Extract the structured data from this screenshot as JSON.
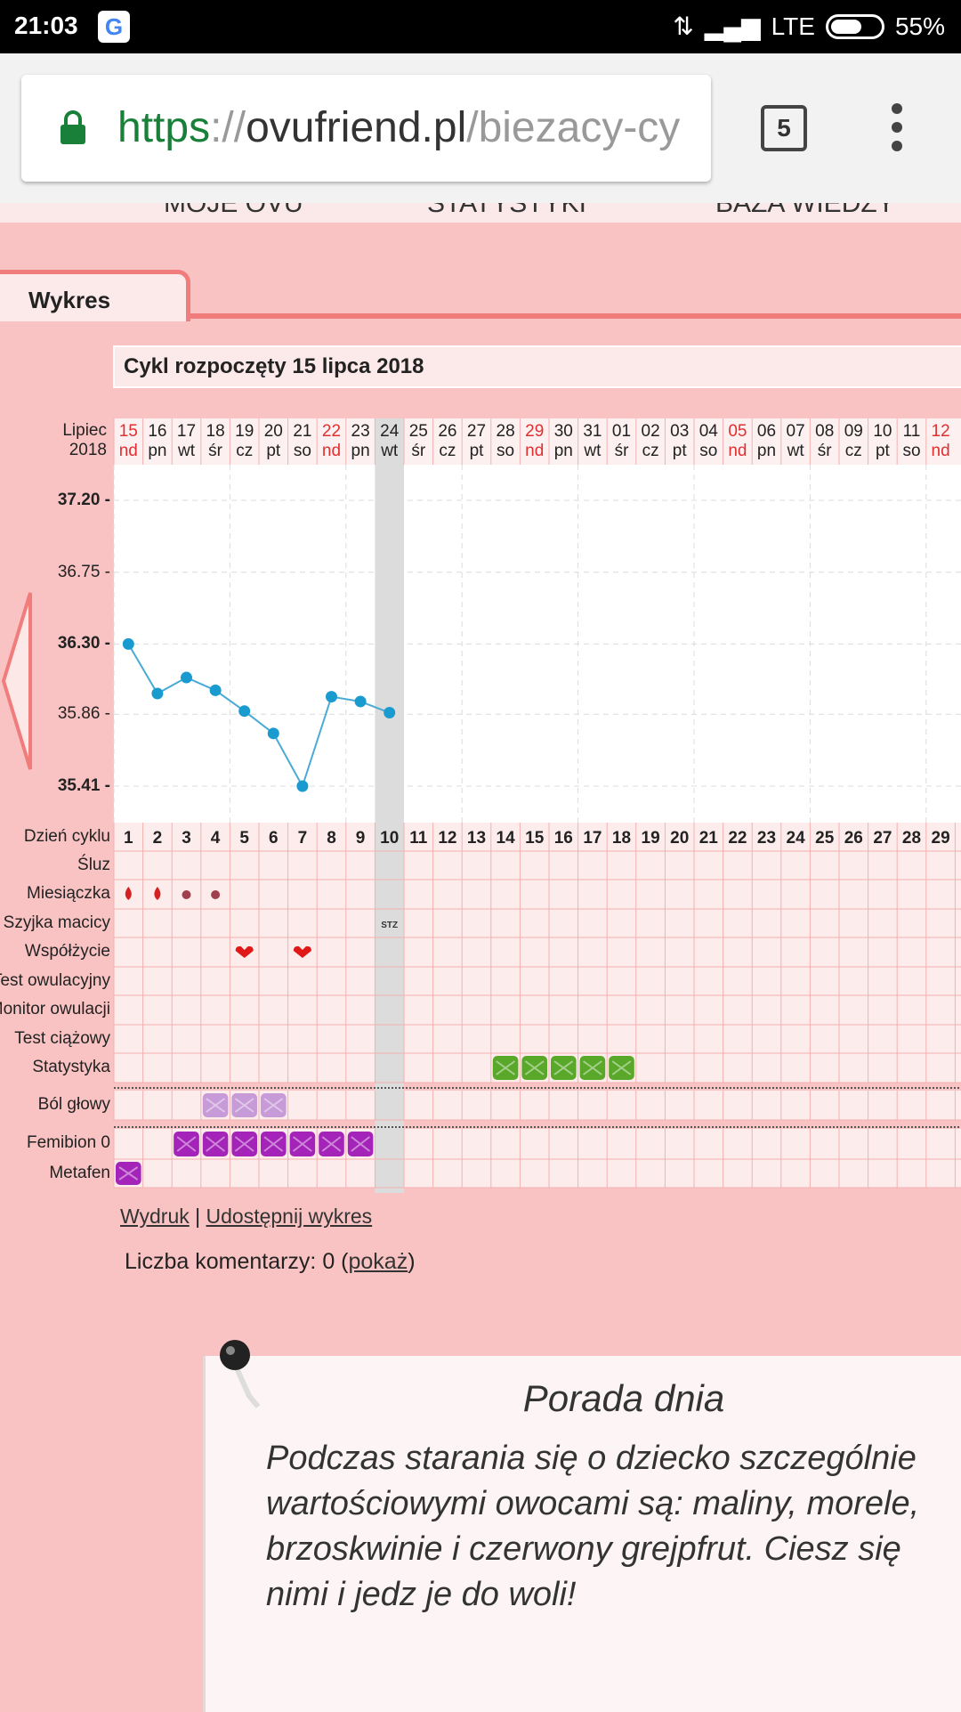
{
  "status": {
    "time": "21:03",
    "network": "LTE",
    "battery": "55%"
  },
  "browser": {
    "url_scheme": "https",
    "url_sep": "://",
    "url_domain": "ovufriend.pl",
    "url_path": "/biezacy-cy",
    "tab_count": "5"
  },
  "nav": {
    "items": [
      "MOJE OVU",
      "STATYSTYKI",
      "BAZA WIEDZY"
    ]
  },
  "tab": {
    "label": "Wykres"
  },
  "cycle_title": "Cykl rozpoczęty 15 lipca 2018",
  "header": {
    "month": "Lipiec",
    "year": "2018",
    "dates": [
      "15",
      "16",
      "17",
      "18",
      "19",
      "20",
      "21",
      "22",
      "23",
      "24",
      "25",
      "26",
      "27",
      "28",
      "29",
      "30",
      "31",
      "01",
      "02",
      "03",
      "04",
      "05",
      "06",
      "07",
      "08",
      "09",
      "10",
      "11",
      "12"
    ],
    "weekdays": [
      "nd",
      "pn",
      "wt",
      "śr",
      "cz",
      "pt",
      "so",
      "nd",
      "pn",
      "wt",
      "śr",
      "cz",
      "pt",
      "so",
      "nd",
      "pn",
      "wt",
      "śr",
      "cz",
      "pt",
      "so",
      "nd",
      "pn",
      "wt",
      "śr",
      "cz",
      "pt",
      "so",
      "nd"
    ],
    "sunday_color": "#e03030",
    "today_index": 9
  },
  "chart_data": {
    "type": "line",
    "y_ticks": [
      "37.20 -",
      "36.75 -",
      "36.30 -",
      "35.86 -",
      "35.41 -"
    ],
    "y_tick_values": [
      37.2,
      36.75,
      36.3,
      35.86,
      35.41
    ],
    "bold_ticks": [
      0,
      2,
      4
    ],
    "ylim": [
      35.41,
      37.2
    ],
    "x_cycle_days": [
      1,
      2,
      3,
      4,
      5,
      6,
      7,
      8,
      9,
      10
    ],
    "temperatures": [
      36.3,
      35.99,
      36.09,
      36.01,
      35.88,
      35.74,
      35.41,
      35.97,
      35.94,
      35.87
    ],
    "line_color": "#4aaad6"
  },
  "grid": {
    "rows": [
      {
        "label": "Dzień cyklu"
      },
      {
        "label": "Śluz"
      },
      {
        "label": "Miesiączka"
      },
      {
        "label": "Szyjka macicy"
      },
      {
        "label": "Współżycie"
      },
      {
        "label": "Test owulacyjny"
      },
      {
        "label": "Monitor owulacji"
      },
      {
        "label": "Test ciążowy"
      },
      {
        "label": "Statystyka"
      },
      {
        "label": "Ból głowy"
      },
      {
        "label": "Femibion 0"
      },
      {
        "label": "Metafen"
      }
    ],
    "cycle_days": [
      "1",
      "2",
      "3",
      "4",
      "5",
      "6",
      "7",
      "8",
      "9",
      "10",
      "11",
      "12",
      "13",
      "14",
      "15",
      "16",
      "17",
      "18",
      "19",
      "20",
      "21",
      "22",
      "23",
      "24",
      "25",
      "26",
      "27",
      "28",
      "29"
    ],
    "szyjka_text": "STZ",
    "colors": {
      "blood": "#d42020",
      "heart": "#e01818",
      "stat": "#5aa82a",
      "headache": "#c79ad8",
      "femibion": "#a423b8",
      "metafen": "#a423b8"
    },
    "marks": {
      "miesiaczka": [
        1,
        1,
        2,
        2
      ],
      "wspolzycie": [
        5,
        7
      ],
      "szyjka": [
        10
      ],
      "statystyka": [
        14,
        15,
        16,
        17,
        18
      ],
      "bol_glowy": [
        4,
        5,
        6
      ],
      "femibion": [
        3,
        4,
        5,
        6,
        7,
        8,
        9
      ],
      "metafen": [
        1
      ]
    }
  },
  "links": {
    "print": "Wydruk",
    "sep": " | ",
    "share": "Udostępnij wykres"
  },
  "comments": {
    "prefix": "Liczba komentarzy: 0 (",
    "link": "pokaż",
    "suffix": ")"
  },
  "tip": {
    "title": "Porada dnia",
    "lines": [
      "Podczas  starania  się  o  dziecko  szczególnie",
      "wartościowymi  owocami  są:  maliny,  morele,",
      "brzoskwinie  i  czerwony  grejpfrut.  Ciesz  się",
      "nimi i jedz je do woli!"
    ]
  }
}
